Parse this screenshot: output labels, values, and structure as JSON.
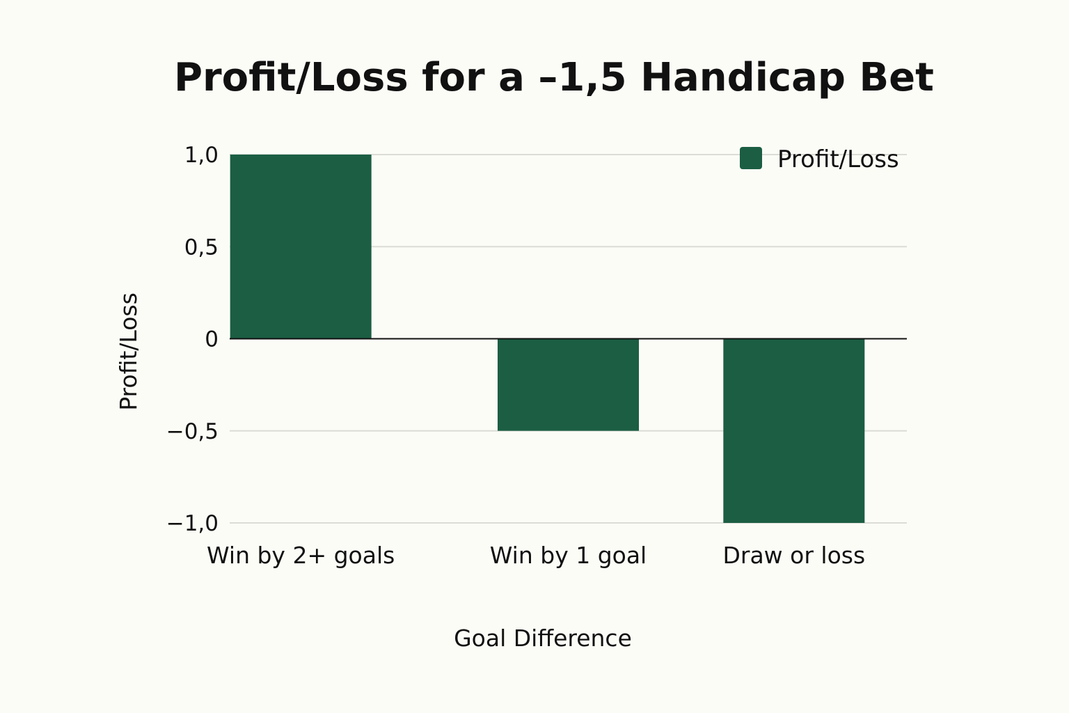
{
  "chart_data": {
    "type": "bar",
    "title": "Profit/Loss for a –1,5 Handicap Bet",
    "xlabel": "Goal Difference",
    "ylabel": "Profit/Loss",
    "categories": [
      "Win by 2+ goals",
      "Win by 1 goal",
      "Draw or loss"
    ],
    "series": [
      {
        "name": "Profit/Loss",
        "values": [
          1.0,
          -0.5,
          -1.0
        ]
      }
    ],
    "ylim": [
      -1.0,
      1.0
    ],
    "yticks": [
      1.0,
      0.5,
      0,
      -0.5,
      -1.0
    ],
    "ytick_labels": [
      "1,0",
      "0,5",
      "0",
      "−0,5",
      "−1,0"
    ],
    "grid": true,
    "legend": {
      "position": "top-right",
      "entries": [
        "Profit/Loss"
      ]
    },
    "colors": {
      "bar": "#1b5e43",
      "background": "#fcfcf7",
      "grid": "#dcdcd6"
    }
  }
}
